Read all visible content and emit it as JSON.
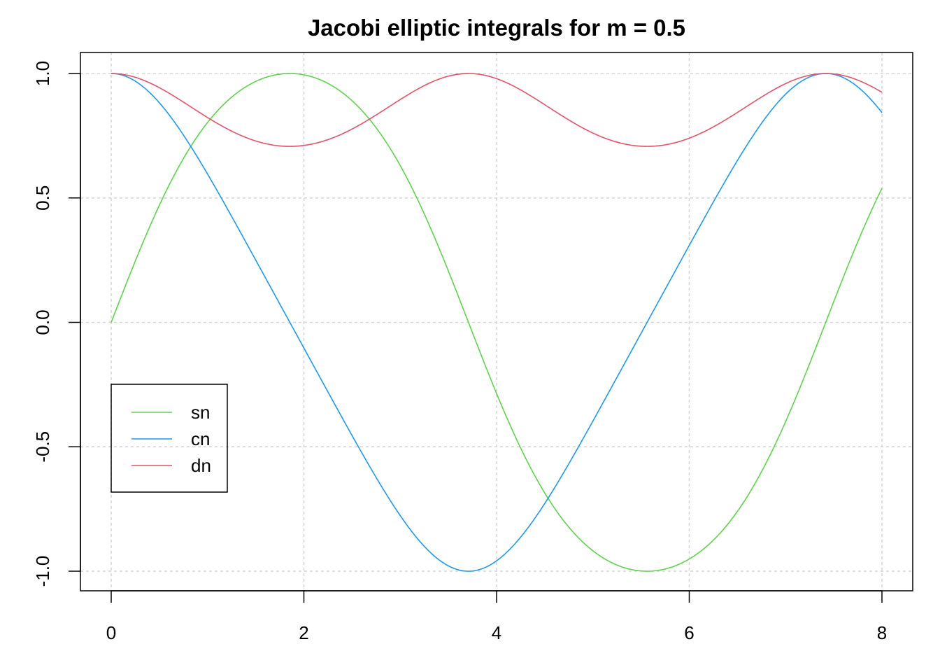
{
  "chart_data": {
    "type": "line",
    "title": "Jacobi elliptic integrals for m = 0.5",
    "xlabel": "",
    "ylabel": "",
    "m": 0.5,
    "xlim": [
      0,
      8
    ],
    "ylim": [
      -1,
      1
    ],
    "x_ticks": [
      0,
      2,
      4,
      6,
      8
    ],
    "y_ticks": [
      -1.0,
      -0.5,
      0.0,
      0.5,
      1.0
    ],
    "x_tick_labels": [
      "0",
      "2",
      "4",
      "6",
      "8"
    ],
    "y_tick_labels": [
      "-1.0",
      "-0.5",
      "0.0",
      "0.5",
      "1.0"
    ],
    "grid": true,
    "legend_position": "left",
    "series": [
      {
        "name": "sn",
        "color": "#61D04F",
        "x": [
          0,
          0.5,
          1,
          1.5,
          1.854,
          2.5,
          3,
          3.5,
          3.708,
          4,
          4.5,
          5,
          5.562,
          6,
          6.5,
          7,
          7.416,
          8
        ],
        "values": [
          0,
          0.4759,
          0.803,
          0.9715,
          1,
          0.9218,
          0.6996,
          0.2668,
          0,
          -0.389,
          -0.7848,
          -0.958,
          -1,
          -0.9589,
          -0.8099,
          -0.3931,
          0,
          0.5367
        ]
      },
      {
        "name": "cn",
        "color": "#2297E6",
        "x": [
          0,
          0.5,
          1,
          1.5,
          1.854,
          2.5,
          3,
          3.5,
          3.708,
          4,
          4.5,
          5,
          5.562,
          6,
          6.5,
          7,
          7.416,
          8
        ],
        "values": [
          1,
          0.8795,
          0.5959,
          0.2369,
          0,
          -0.3877,
          -0.7145,
          -0.9637,
          -1,
          -0.9212,
          -0.6198,
          -0.2867,
          0,
          0.2838,
          0.5866,
          0.9195,
          1,
          0.8438
        ]
      },
      {
        "name": "dn",
        "color": "#DF536B",
        "x": [
          0,
          0.5,
          1,
          1.5,
          1.854,
          2.5,
          3,
          3.5,
          3.708,
          4,
          4.5,
          5,
          5.562,
          6,
          6.5,
          7,
          7.416,
          8
        ],
        "values": [
          1,
          0.9417,
          0.8232,
          0.7224,
          0.7071,
          0.7675,
          0.8687,
          0.982,
          1,
          0.9614,
          0.8354,
          0.7442,
          0.7071,
          0.7424,
          0.8205,
          0.9604,
          1,
          0.9234
        ]
      }
    ]
  }
}
